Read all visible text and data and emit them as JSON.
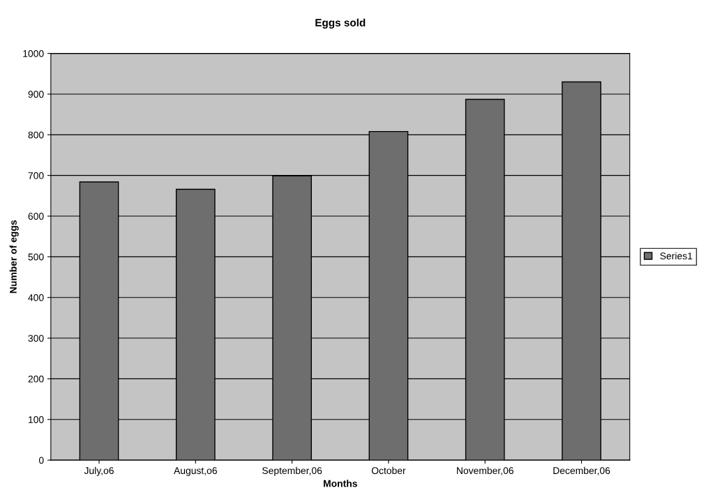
{
  "chart_data": {
    "type": "bar",
    "title": "Eggs sold",
    "xlabel": "Months",
    "ylabel": "Number of eggs",
    "categories": [
      "July,o6",
      "August,o6",
      "September,06",
      "October",
      "November,06",
      "December,06"
    ],
    "series": [
      {
        "name": "Series1",
        "color": "#6e6e6e",
        "values": [
          684,
          666,
          699,
          808,
          887,
          930
        ]
      }
    ],
    "ylim": [
      0,
      1000
    ],
    "yticks": [
      0,
      100,
      200,
      300,
      400,
      500,
      600,
      700,
      800,
      900,
      1000
    ],
    "grid": "y",
    "legend": "right"
  }
}
